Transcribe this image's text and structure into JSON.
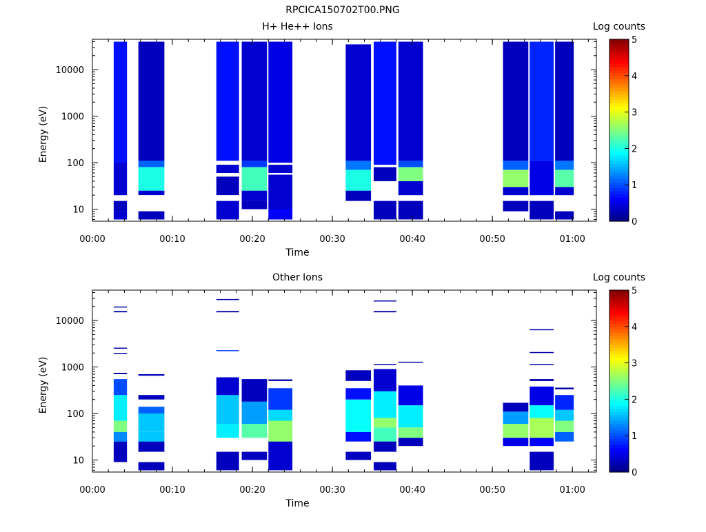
{
  "figure_title": "RPCICA150702T00.PNG",
  "colorbar": {
    "label": "Log counts",
    "ticks": [
      "0",
      "1",
      "2",
      "3",
      "4",
      "5"
    ],
    "range": [
      0,
      5
    ],
    "colormap": "jet"
  },
  "chart_data": [
    {
      "type": "heatmap",
      "title": "H+ He++ Ions",
      "xlabel": "Time",
      "ylabel": "Energy (eV)",
      "xlim": [
        "00:00",
        "01:03"
      ],
      "ylim": [
        5.5,
        45000
      ],
      "yscale": "log",
      "x_ticks": [
        "00:00",
        "00:10",
        "00:20",
        "00:30",
        "00:40",
        "00:50",
        "01:00"
      ],
      "y_ticks": [
        "10",
        "100",
        "1000",
        "10000"
      ],
      "columns": [
        {
          "t0": "00:02:40",
          "t1": "00:04:20",
          "bands": [
            [
              6,
              9,
              0.4
            ],
            [
              9,
              15,
              0.3
            ],
            [
              20,
              100,
              0.4
            ],
            [
              100,
              40000,
              0.7
            ]
          ]
        },
        {
          "t0": "00:05:45",
          "t1": "00:09:00",
          "bands": [
            [
              6,
              9,
              0.3
            ],
            [
              20,
              25,
              0.4
            ],
            [
              25,
              80,
              2.0
            ],
            [
              80,
              110,
              1.1
            ],
            [
              110,
              40000,
              0.3
            ]
          ]
        },
        {
          "t0": "00:15:30",
          "t1": "00:18:20",
          "bands": [
            [
              6,
              15,
              0.4
            ],
            [
              20,
              50,
              0.3
            ],
            [
              60,
              90,
              0.4
            ],
            [
              110,
              40000,
              0.7
            ]
          ]
        },
        {
          "t0": "00:18:40",
          "t1": "00:21:50",
          "bands": [
            [
              10,
              15,
              0.3
            ],
            [
              15,
              25,
              0.4
            ],
            [
              25,
              80,
              2.2
            ],
            [
              80,
              110,
              0.9
            ],
            [
              110,
              40000,
              0.4
            ]
          ]
        },
        {
          "t0": "00:22:00",
          "t1": "00:25:00",
          "bands": [
            [
              6,
              10,
              0.6
            ],
            [
              10,
              55,
              0.4
            ],
            [
              60,
              90,
              0.4
            ],
            [
              100,
              40000,
              0.5
            ]
          ]
        },
        {
          "t0": "00:31:40",
          "t1": "00:34:50",
          "bands": [
            [
              15,
              25,
              0.3
            ],
            [
              25,
              70,
              2.0
            ],
            [
              70,
              110,
              1.2
            ],
            [
              110,
              35000,
              0.4
            ]
          ]
        },
        {
          "t0": "00:35:10",
          "t1": "00:38:00",
          "bands": [
            [
              6,
              15,
              0.3
            ],
            [
              40,
              80,
              0.3
            ],
            [
              90,
              40000,
              0.7
            ]
          ]
        },
        {
          "t0": "00:38:15",
          "t1": "00:41:20",
          "bands": [
            [
              6,
              15,
              0.3
            ],
            [
              20,
              40,
              0.4
            ],
            [
              40,
              80,
              2.5
            ],
            [
              80,
              110,
              1.0
            ],
            [
              110,
              40000,
              0.4
            ]
          ]
        },
        {
          "t0": "00:51:20",
          "t1": "00:54:30",
          "bands": [
            [
              9,
              15,
              0.3
            ],
            [
              20,
              30,
              0.4
            ],
            [
              30,
              70,
              2.6
            ],
            [
              70,
              110,
              1.1
            ],
            [
              110,
              40000,
              0.3
            ]
          ]
        },
        {
          "t0": "00:54:40",
          "t1": "00:57:40",
          "bands": [
            [
              6,
              15,
              0.3
            ],
            [
              20,
              110,
              0.5
            ],
            [
              110,
              40000,
              0.8
            ]
          ]
        },
        {
          "t0": "00:57:50",
          "t1": "01:00:10",
          "bands": [
            [
              6,
              9,
              0.3
            ],
            [
              20,
              30,
              0.4
            ],
            [
              30,
              70,
              2.3
            ],
            [
              70,
              110,
              1.2
            ],
            [
              110,
              40000,
              0.3
            ]
          ]
        }
      ]
    },
    {
      "type": "heatmap",
      "title": "Other Ions",
      "xlabel": "Time",
      "ylabel": "Energy (eV)",
      "xlim": [
        "00:00",
        "01:03"
      ],
      "ylim": [
        5.5,
        45000
      ],
      "yscale": "log",
      "x_ticks": [
        "00:00",
        "00:10",
        "00:20",
        "00:30",
        "00:40",
        "00:50",
        "01:00"
      ],
      "y_ticks": [
        "10",
        "100",
        "1000",
        "10000"
      ],
      "columns": [
        {
          "t0": "00:02:40",
          "t1": "00:04:20",
          "bands": [
            [
              9,
              25,
              0.3
            ],
            [
              25,
              40,
              1.3
            ],
            [
              40,
              70,
              2.5
            ],
            [
              70,
              250,
              1.8
            ],
            [
              250,
              550,
              1.0
            ],
            [
              700,
              750,
              0.2
            ],
            [
              1900,
              2000,
              0.2
            ],
            [
              2500,
              2600,
              0.2
            ],
            [
              15000,
              16000,
              0.2
            ],
            [
              19000,
              20000,
              0.2
            ]
          ]
        },
        {
          "t0": "00:05:45",
          "t1": "00:09:00",
          "bands": [
            [
              6,
              9,
              0.3
            ],
            [
              15,
              25,
              0.3
            ],
            [
              25,
              40,
              1.6
            ],
            [
              40,
              100,
              1.6
            ],
            [
              100,
              140,
              1.1
            ],
            [
              200,
              250,
              0.3
            ],
            [
              650,
              700,
              0.3
            ]
          ]
        },
        {
          "t0": "00:15:30",
          "t1": "00:18:20",
          "bands": [
            [
              6,
              15,
              0.3
            ],
            [
              30,
              60,
              1.8
            ],
            [
              60,
              250,
              1.6
            ],
            [
              250,
              600,
              0.4
            ],
            [
              2200,
              2300,
              0.9
            ],
            [
              15000,
              16000,
              0.2
            ],
            [
              28000,
              29000,
              0.2
            ]
          ]
        },
        {
          "t0": "00:18:40",
          "t1": "00:21:50",
          "bands": [
            [
              10,
              15,
              0.3
            ],
            [
              30,
              60,
              2.3
            ],
            [
              60,
              180,
              1.4
            ],
            [
              180,
              550,
              0.3
            ]
          ]
        },
        {
          "t0": "00:22:00",
          "t1": "00:25:00",
          "bands": [
            [
              6,
              25,
              0.4
            ],
            [
              25,
              70,
              2.6
            ],
            [
              70,
              120,
              1.7
            ],
            [
              120,
              350,
              0.9
            ],
            [
              500,
              540,
              0.2
            ]
          ]
        },
        {
          "t0": "00:31:40",
          "t1": "00:34:50",
          "bands": [
            [
              10,
              15,
              0.3
            ],
            [
              25,
              40,
              0.7
            ],
            [
              40,
              200,
              1.9
            ],
            [
              200,
              350,
              0.7
            ],
            [
              500,
              850,
              0.3
            ]
          ]
        },
        {
          "t0": "00:35:10",
          "t1": "00:38:00",
          "bands": [
            [
              6,
              9,
              0.3
            ],
            [
              15,
              25,
              0.3
            ],
            [
              25,
              50,
              2.2
            ],
            [
              50,
              80,
              2.6
            ],
            [
              80,
              300,
              1.8
            ],
            [
              300,
              900,
              0.4
            ],
            [
              1100,
              1150,
              0.2
            ],
            [
              15000,
              16000,
              0.2
            ],
            [
              26000,
              27000,
              0.2
            ]
          ]
        },
        {
          "t0": "00:38:15",
          "t1": "00:41:20",
          "bands": [
            [
              20,
              30,
              0.3
            ],
            [
              30,
              50,
              2.5
            ],
            [
              50,
              150,
              1.8
            ],
            [
              150,
              400,
              0.5
            ],
            [
              1250,
              1300,
              0.2
            ]
          ]
        },
        {
          "t0": "00:51:20",
          "t1": "00:54:30",
          "bands": [
            [
              20,
              30,
              0.5
            ],
            [
              30,
              60,
              2.6
            ],
            [
              60,
              110,
              1.4
            ],
            [
              110,
              170,
              0.3
            ]
          ]
        },
        {
          "t0": "00:54:40",
          "t1": "00:57:40",
          "bands": [
            [
              6,
              15,
              0.3
            ],
            [
              20,
              30,
              0.6
            ],
            [
              30,
              80,
              2.7
            ],
            [
              80,
              150,
              1.9
            ],
            [
              150,
              380,
              0.5
            ],
            [
              500,
              550,
              0.2
            ],
            [
              1100,
              1150,
              0.2
            ],
            [
              2000,
              2100,
              0.2
            ],
            [
              6200,
              6500,
              0.2
            ]
          ]
        },
        {
          "t0": "00:57:50",
          "t1": "01:00:10",
          "bands": [
            [
              25,
              40,
              1.1
            ],
            [
              40,
              70,
              2.5
            ],
            [
              70,
              120,
              1.6
            ],
            [
              120,
              250,
              0.8
            ],
            [
              330,
              360,
              0.2
            ]
          ]
        }
      ]
    }
  ]
}
